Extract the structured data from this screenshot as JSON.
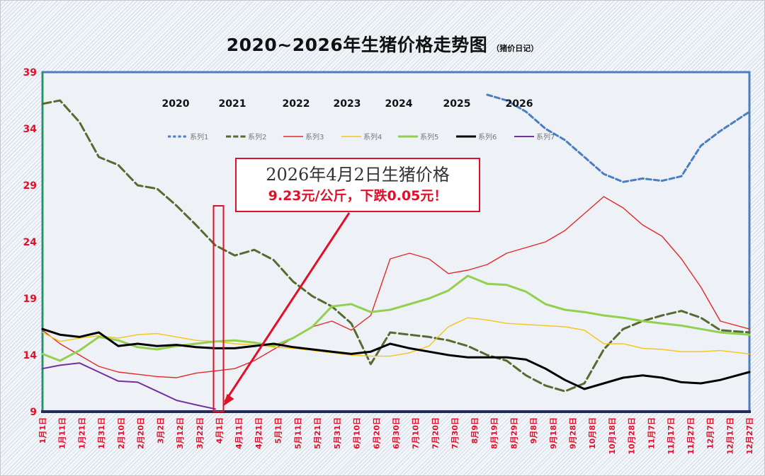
{
  "title": "2020~2026年生猪价格走势图",
  "subtitle": "（猪价日记）",
  "callout": {
    "line1": "2026年4月2日生猪价格",
    "line2": "9.23元/公斤，下跌0.05元！"
  },
  "colors": {
    "accent_red": "#e0102a",
    "plot_border": "#4a7ec0",
    "x_axis": "#1f2d5a"
  },
  "chart_data": {
    "type": "line",
    "title": "2020~2026年生猪价格走势图",
    "xlabel": "",
    "ylabel": "",
    "ylim": [
      9,
      39
    ],
    "yticks": [
      9,
      14,
      19,
      24,
      29,
      34,
      39
    ],
    "grid": false,
    "legend_position": "top",
    "x_tick_labels": [
      "1月1日",
      "1月11日",
      "1月21日",
      "1月31日",
      "2月10日",
      "2月20日",
      "3月2日",
      "3月12日",
      "3月22日",
      "4月1日",
      "4月11日",
      "4月21日",
      "5月1日",
      "5月11日",
      "5月21日",
      "5月31日",
      "6月10日",
      "6月20日",
      "6月30日",
      "7月10日",
      "7月20日",
      "7月30日",
      "8月9日",
      "8月19日",
      "8月29日",
      "9月8日",
      "9月18日",
      "9月28日",
      "10月8日",
      "10月18日",
      "10月28日",
      "11月7日",
      "11月17日",
      "11月27日",
      "12月7日",
      "12月17日",
      "12月27日"
    ],
    "year_labels": [
      "2020",
      "2021",
      "2022",
      "2023",
      "2024",
      "2025",
      "2026"
    ],
    "x": [
      1,
      10,
      20,
      30,
      40,
      50,
      60,
      70,
      80,
      90,
      100,
      110,
      120,
      130,
      140,
      150,
      160,
      170,
      180,
      190,
      200,
      210,
      220,
      230,
      240,
      250,
      260,
      270,
      280,
      290,
      300,
      310,
      320,
      330,
      340,
      350,
      365
    ],
    "series": [
      {
        "name": "系列1",
        "color": "#4a7ec0",
        "dash": "7,4",
        "width": 3,
        "values": [
          null,
          null,
          null,
          null,
          null,
          null,
          null,
          null,
          null,
          null,
          null,
          null,
          null,
          null,
          null,
          null,
          null,
          null,
          null,
          null,
          null,
          null,
          null,
          37.0,
          36.5,
          35.5,
          34.0,
          33.0,
          31.5,
          30.0,
          29.3,
          29.6,
          29.4,
          29.8,
          32.5,
          33.8,
          35.5
        ]
      },
      {
        "name": "系列2",
        "color": "#556b2f",
        "dash": "12,5",
        "width": 3,
        "values": [
          36.2,
          36.5,
          34.6,
          31.5,
          30.8,
          29.0,
          28.7,
          27.2,
          25.5,
          23.7,
          22.8,
          23.3,
          22.4,
          20.5,
          19.2,
          18.3,
          16.8,
          13.2,
          16.0,
          15.8,
          15.6,
          15.3,
          14.8,
          14.0,
          13.5,
          12.2,
          11.3,
          10.8,
          11.5,
          14.5,
          16.3,
          17.0,
          17.5,
          17.9,
          17.3,
          16.2,
          16.0
        ]
      },
      {
        "name": "系列3",
        "color": "#e02a2a",
        "dash": "",
        "width": 1.4,
        "values": [
          16.2,
          15.0,
          14.0,
          13.0,
          12.5,
          12.3,
          12.1,
          12.0,
          12.4,
          12.6,
          12.8,
          13.5,
          14.5,
          15.5,
          16.5,
          17.0,
          16.2,
          17.5,
          22.5,
          23.0,
          22.5,
          21.2,
          21.5,
          22.0,
          23.0,
          23.5,
          24.0,
          25.0,
          26.5,
          28.0,
          27.0,
          25.5,
          24.5,
          22.5,
          20.0,
          17.0,
          16.3
        ]
      },
      {
        "name": "系列4",
        "color": "#f5c518",
        "dash": "",
        "width": 1.4,
        "values": [
          16.0,
          15.2,
          15.5,
          15.7,
          15.5,
          15.8,
          15.9,
          15.6,
          15.3,
          15.2,
          15.0,
          14.9,
          14.7,
          14.6,
          14.4,
          14.2,
          14.0,
          13.9,
          13.9,
          14.2,
          14.8,
          16.5,
          17.3,
          17.1,
          16.8,
          16.7,
          16.6,
          16.5,
          16.2,
          15.0,
          15.0,
          14.6,
          14.5,
          14.3,
          14.3,
          14.4,
          14.1
        ]
      },
      {
        "name": "系列5",
        "color": "#92d050",
        "dash": "",
        "width": 3,
        "values": [
          14.1,
          13.5,
          14.4,
          15.6,
          15.3,
          14.7,
          14.5,
          14.8,
          15.0,
          15.2,
          15.3,
          15.1,
          14.8,
          15.5,
          16.5,
          18.3,
          18.5,
          17.8,
          18.0,
          18.5,
          19.0,
          19.7,
          21.0,
          20.3,
          20.2,
          19.6,
          18.5,
          18.0,
          17.8,
          17.5,
          17.3,
          17.0,
          16.8,
          16.6,
          16.3,
          16.0,
          15.8
        ]
      },
      {
        "name": "系列6",
        "color": "#000000",
        "dash": "",
        "width": 3,
        "values": [
          16.3,
          15.8,
          15.6,
          16.0,
          14.8,
          15.0,
          14.8,
          14.9,
          14.7,
          14.6,
          14.6,
          14.8,
          15.0,
          14.7,
          14.5,
          14.3,
          14.1,
          14.3,
          15.0,
          14.6,
          14.3,
          14.0,
          13.8,
          13.8,
          13.8,
          13.6,
          12.8,
          11.8,
          11.0,
          11.5,
          12.0,
          12.2,
          12.0,
          11.6,
          11.5,
          11.8,
          12.5
        ]
      },
      {
        "name": "系列7",
        "color": "#7030a0",
        "dash": "",
        "width": 2,
        "values": [
          12.8,
          13.1,
          13.3,
          12.5,
          11.7,
          11.6,
          10.8,
          10.0,
          9.6,
          9.23,
          null,
          null,
          null,
          null,
          null,
          null,
          null,
          null,
          null,
          null,
          null,
          null,
          null,
          null,
          null,
          null,
          null,
          null,
          null,
          null,
          null,
          null,
          null,
          null,
          null,
          null,
          null
        ]
      }
    ],
    "annotation": {
      "date": "4月2日",
      "value": 9.23,
      "text": "2026年4月2日生猪价格 9.23元/公斤，下跌0.05元！"
    }
  }
}
